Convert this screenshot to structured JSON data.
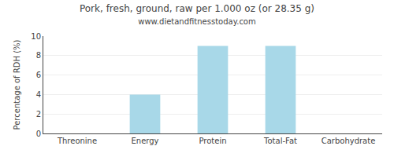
{
  "chart_data": {
    "type": "bar",
    "title": "Pork, fresh, ground, raw per 1.000 oz (or 28.35 g)",
    "subtitle": "www.dietandfitnesstoday.com",
    "categories": [
      "Threonine",
      "Energy",
      "Protein",
      "Total-Fat",
      "Carbohydrate"
    ],
    "values": [
      0,
      4.0,
      9.0,
      9.0,
      0
    ],
    "color": "#a8d8e8",
    "ylabel": "Percentage of RDH (%)",
    "ylim": [
      0,
      10
    ],
    "yticks": [
      0,
      2,
      4,
      6,
      8,
      10
    ],
    "grid": true
  }
}
